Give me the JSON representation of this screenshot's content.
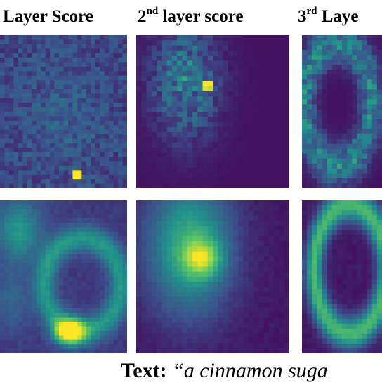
{
  "headers": {
    "col1": "Layer Score",
    "col2": {
      "prefix": "2",
      "sup": "nd",
      "suffix": " layer score"
    },
    "col3": {
      "prefix": "3",
      "sup": "rd",
      "suffix": " Laye"
    }
  },
  "caption": {
    "label": "Text:",
    "text": "“a cinnamon suga"
  },
  "colors": {
    "background": "#ffffff",
    "colormap": [
      "#440154",
      "#3b528b",
      "#21918c",
      "#5ec962",
      "#fde725"
    ]
  }
}
